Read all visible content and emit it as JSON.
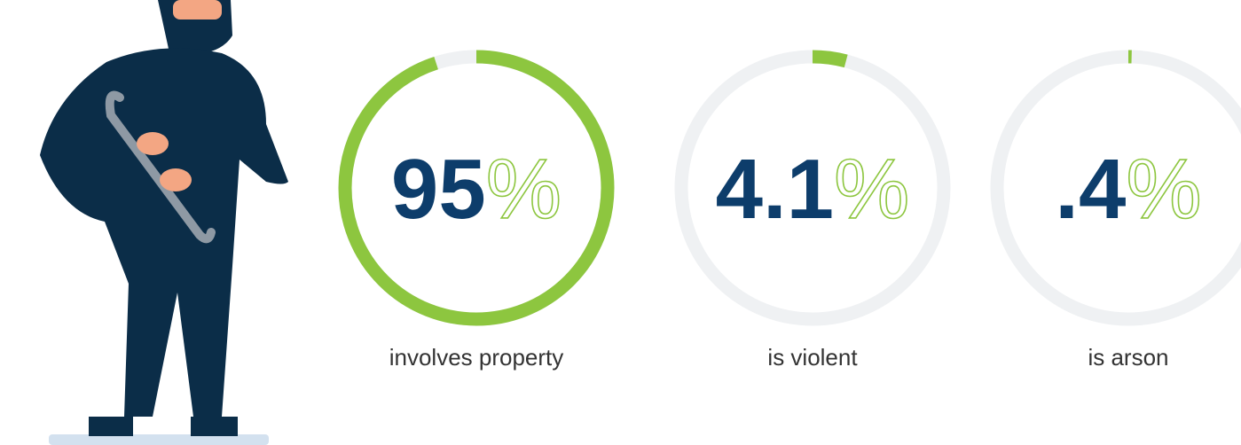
{
  "chart_data": [
    {
      "type": "gauge",
      "value": 95,
      "unit": "%",
      "label": "involves property",
      "ylim": [
        0,
        100
      ],
      "color": "#8dc63f",
      "track_color": "#eff1f3"
    },
    {
      "type": "gauge",
      "value": 4.1,
      "unit": "%",
      "label": "is violent",
      "ylim": [
        0,
        100
      ],
      "color": "#8dc63f",
      "track_color": "#eff1f3"
    },
    {
      "type": "gauge",
      "value": 0.4,
      "value_label": ".4",
      "unit": "%",
      "label": "is arson",
      "ylim": [
        0,
        100
      ],
      "color": "#8dc63f",
      "track_color": "#eff1f3"
    }
  ]
}
